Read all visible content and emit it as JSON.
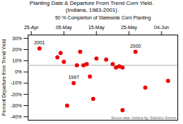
{
  "chart_data": {
    "type": "scatter",
    "title": "Planting Date & Departure From Trend Corn Yield.",
    "subtitle": "(Indiana, 1983-2001)",
    "xlabel": "50 % Completion of Statewide Corn Planting",
    "ylabel": "Percent Departure from Trend Yield",
    "x": [
      27.5,
      33,
      34,
      35,
      36,
      38,
      39,
      40,
      41,
      42,
      43,
      44,
      45,
      48,
      50,
      51,
      52,
      53,
      53,
      57,
      60,
      67
    ],
    "values": [
      21,
      13,
      17,
      9,
      -30,
      -10,
      6,
      18,
      6,
      7,
      -4,
      -24,
      12,
      11,
      7,
      4,
      5,
      4,
      -34,
      18,
      -14,
      -8
    ],
    "color": "#ee0000",
    "xlim": [
      24,
      70
    ],
    "ylim": [
      -43,
      33
    ],
    "xticks": [
      {
        "value": 25,
        "label": "25-Apr"
      },
      {
        "value": 35,
        "label": "05-May"
      },
      {
        "value": 45,
        "label": "15-May"
      },
      {
        "value": 55,
        "label": "25-May"
      },
      {
        "value": 65,
        "label": "04-Jun"
      }
    ],
    "yticks": [
      {
        "value": -40,
        "label": "-40%"
      },
      {
        "value": -30,
        "label": "-30%"
      },
      {
        "value": -20,
        "label": "-20%"
      },
      {
        "value": -10,
        "label": "-10%"
      },
      {
        "value": 0,
        "label": "0%"
      },
      {
        "value": 10,
        "label": "10%"
      },
      {
        "value": 20,
        "label": "20%"
      },
      {
        "value": 30,
        "label": "30%"
      }
    ],
    "reference_line": {
      "value": 6,
      "color": "#aaaaaa"
    },
    "annotations": [
      {
        "text": "2001",
        "x": 27.5,
        "y": 21
      },
      {
        "text": "1997",
        "x": 38,
        "y": -10
      },
      {
        "text": "2000",
        "x": 57,
        "y": 18
      }
    ],
    "source": "Source data: Indiana Ag. Statistics Service"
  }
}
